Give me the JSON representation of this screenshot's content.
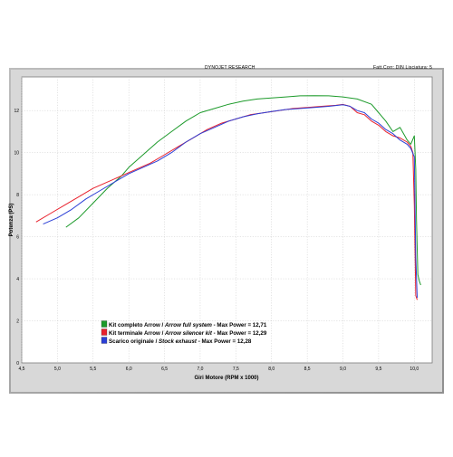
{
  "header": {
    "title": "DYNOJET RESEARCH",
    "correction": "Fatt.Corr: DIN  Lisciatura: 5"
  },
  "chart_data": {
    "type": "line",
    "title": "",
    "xlabel": "Giri Motore (RPM x 1000)",
    "ylabel": "Potenza (PS)",
    "xlim": [
      4.5,
      10.25
    ],
    "ylim": [
      0,
      13.6
    ],
    "xticks": [
      "4,5",
      "5,0",
      "5,5",
      "6,0",
      "6,5",
      "7,0",
      "7,5",
      "8,0",
      "8,5",
      "9,0",
      "9,5",
      "10,0"
    ],
    "xtick_values": [
      4.5,
      5.0,
      5.5,
      6.0,
      6.5,
      7.0,
      7.5,
      8.0,
      8.5,
      9.0,
      9.5,
      10.0
    ],
    "yticks": [
      "0",
      "2",
      "4",
      "6",
      "8",
      "10",
      "12"
    ],
    "ytick_values": [
      0,
      2,
      4,
      6,
      8,
      10,
      12
    ],
    "grid": true,
    "legend_position": "bottom-left",
    "series": [
      {
        "name": "Kit completo Arrow / Arrow full system - Max Power = 12,71",
        "legend_main": "Kit completo Arrow / ",
        "legend_italic": "Arrow full system",
        "legend_tail": " - Max Power = 12,71",
        "color": "#1c9a2a",
        "x": [
          5.12,
          5.3,
          5.5,
          5.7,
          5.9,
          6.0,
          6.2,
          6.4,
          6.6,
          6.8,
          7.0,
          7.2,
          7.4,
          7.6,
          7.8,
          8.0,
          8.2,
          8.4,
          8.6,
          8.8,
          9.0,
          9.2,
          9.4,
          9.5,
          9.6,
          9.7,
          9.8,
          9.9,
          9.95,
          10.0,
          10.02,
          10.03,
          10.05,
          10.07,
          10.09
        ],
        "y": [
          6.45,
          6.9,
          7.6,
          8.3,
          8.9,
          9.3,
          9.9,
          10.5,
          11.0,
          11.5,
          11.9,
          12.1,
          12.3,
          12.45,
          12.55,
          12.6,
          12.65,
          12.7,
          12.71,
          12.7,
          12.65,
          12.55,
          12.3,
          11.9,
          11.5,
          11.0,
          11.2,
          10.6,
          10.4,
          10.8,
          9.2,
          6.8,
          4.2,
          3.9,
          3.7
        ]
      },
      {
        "name": "Kit terminale Arrow / Arrow silencer kit - Max Power = 12,29",
        "legend_main": "Kit terminale Arrow / ",
        "legend_italic": "Arrow silencer kit",
        "legend_tail": " - Max Power = 12,29",
        "color": "#e8202c",
        "x": [
          4.7,
          4.9,
          5.1,
          5.3,
          5.5,
          5.7,
          5.9,
          6.1,
          6.3,
          6.5,
          6.7,
          6.9,
          7.1,
          7.3,
          7.5,
          7.7,
          7.9,
          8.1,
          8.3,
          8.5,
          8.7,
          8.9,
          9.0,
          9.1,
          9.2,
          9.3,
          9.4,
          9.5,
          9.6,
          9.7,
          9.8,
          9.9,
          9.95,
          9.98,
          10.0,
          10.02,
          10.04
        ],
        "y": [
          6.7,
          7.1,
          7.5,
          7.9,
          8.3,
          8.6,
          8.9,
          9.2,
          9.5,
          9.9,
          10.3,
          10.7,
          11.1,
          11.4,
          11.6,
          11.8,
          11.9,
          12.0,
          12.1,
          12.15,
          12.2,
          12.25,
          12.29,
          12.2,
          11.9,
          11.8,
          11.5,
          11.3,
          11.0,
          10.8,
          10.7,
          10.5,
          10.3,
          10.0,
          7.5,
          3.2,
          3.0
        ]
      },
      {
        "name": "Scarico originale / Stock exhaust -  Max Power = 12,28",
        "legend_main": "Scarico originale / ",
        "legend_italic": "Stock exhaust",
        "legend_tail": " -  Max Power = 12,28",
        "color": "#2b3fd6",
        "x": [
          4.8,
          5.0,
          5.2,
          5.4,
          5.6,
          5.8,
          6.0,
          6.2,
          6.4,
          6.6,
          6.8,
          7.0,
          7.2,
          7.4,
          7.6,
          7.8,
          8.0,
          8.2,
          8.4,
          8.6,
          8.8,
          9.0,
          9.1,
          9.2,
          9.3,
          9.4,
          9.5,
          9.6,
          9.7,
          9.8,
          9.9,
          9.95,
          10.0,
          10.02,
          10.04
        ],
        "y": [
          6.6,
          6.9,
          7.3,
          7.8,
          8.2,
          8.6,
          9.0,
          9.3,
          9.6,
          10.0,
          10.5,
          10.9,
          11.2,
          11.5,
          11.7,
          11.85,
          11.95,
          12.05,
          12.1,
          12.15,
          12.2,
          12.28,
          12.2,
          12.0,
          11.9,
          11.6,
          11.4,
          11.1,
          10.9,
          10.6,
          10.4,
          10.2,
          9.8,
          5.0,
          3.1
        ]
      }
    ]
  }
}
